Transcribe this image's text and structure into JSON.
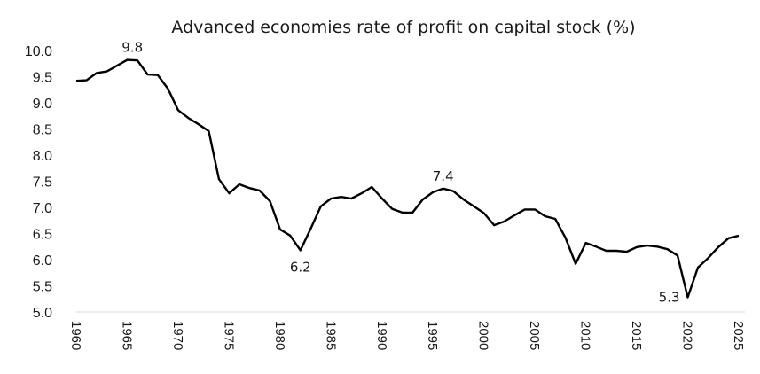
{
  "chart_data": {
    "type": "line",
    "title": "Advanced economies rate of profit on capital stock (%)",
    "xlabel": "",
    "ylabel": "",
    "ylim": [
      5.0,
      10.0
    ],
    "xlim": [
      1960,
      2025
    ],
    "grid": false,
    "legend": "none",
    "y_ticks": [
      "10.0",
      "9.5",
      "9.0",
      "8.5",
      "8.0",
      "7.5",
      "7.0",
      "6.5",
      "6.0",
      "5.5",
      "5.0"
    ],
    "x_ticks": [
      "1960",
      "1965",
      "1970",
      "1975",
      "1980",
      "1985",
      "1990",
      "1995",
      "2000",
      "2005",
      "2010",
      "2015",
      "2020",
      "2025"
    ],
    "line_color": "#000000",
    "axis_color": "#d9d9d9",
    "series": [
      {
        "name": "Rate of profit",
        "x": [
          1960,
          1961,
          1962,
          1963,
          1964,
          1965,
          1966,
          1967,
          1968,
          1969,
          1970,
          1971,
          1972,
          1973,
          1974,
          1975,
          1976,
          1977,
          1978,
          1979,
          1980,
          1981,
          1982,
          1983,
          1984,
          1985,
          1986,
          1987,
          1988,
          1989,
          1990,
          1991,
          1992,
          1993,
          1994,
          1995,
          1996,
          1997,
          1998,
          1999,
          2000,
          2001,
          2002,
          2003,
          2004,
          2005,
          2006,
          2007,
          2008,
          2009,
          2010,
          2011,
          2012,
          2013,
          2014,
          2015,
          2016,
          2017,
          2018,
          2019,
          2020,
          2021,
          2022,
          2023,
          2024,
          2025
        ],
        "values": [
          9.42,
          9.43,
          9.57,
          9.6,
          9.71,
          9.82,
          9.81,
          9.54,
          9.53,
          9.27,
          8.86,
          8.71,
          8.59,
          8.46,
          7.54,
          7.27,
          7.44,
          7.37,
          7.32,
          7.12,
          6.58,
          6.46,
          6.18,
          6.59,
          7.02,
          7.17,
          7.2,
          7.17,
          7.27,
          7.39,
          7.17,
          6.97,
          6.9,
          6.9,
          7.15,
          7.29,
          7.36,
          7.31,
          7.15,
          7.02,
          6.89,
          6.66,
          6.73,
          6.85,
          6.96,
          6.96,
          6.83,
          6.78,
          6.42,
          5.92,
          6.32,
          6.25,
          6.17,
          6.17,
          6.15,
          6.24,
          6.27,
          6.25,
          6.2,
          6.08,
          5.28,
          5.85,
          6.03,
          6.24,
          6.41,
          6.46
        ]
      }
    ],
    "annotations": [
      {
        "text": "9.8",
        "x": 1965.5,
        "y": 9.82,
        "position": "above"
      },
      {
        "text": "6.2",
        "x": 1982,
        "y": 6.18,
        "position": "below"
      },
      {
        "text": "7.4",
        "x": 1996,
        "y": 7.36,
        "position": "above"
      },
      {
        "text": "5.3",
        "x": 2020,
        "y": 5.28,
        "position": "left"
      }
    ]
  }
}
